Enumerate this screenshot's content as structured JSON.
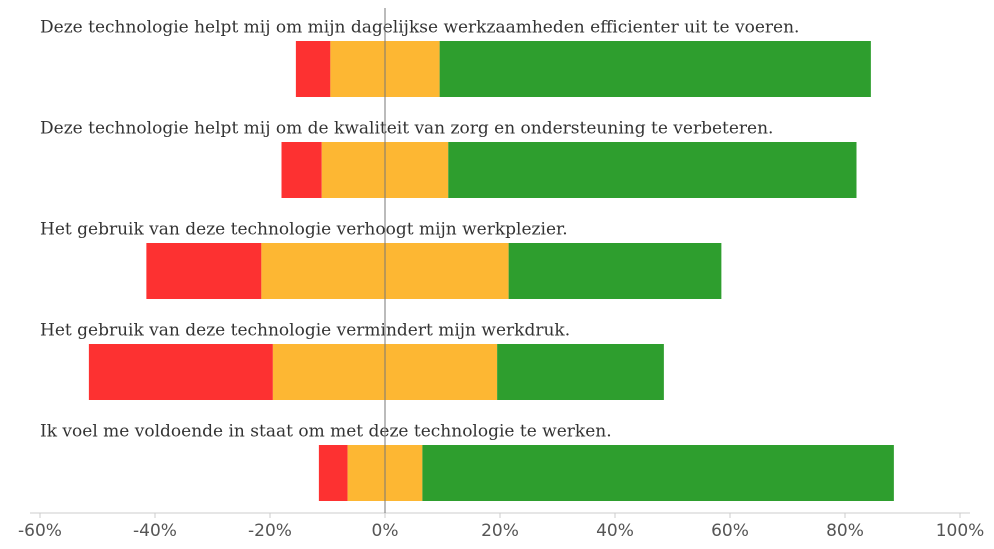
{
  "chart_data": {
    "type": "diverging-bar",
    "categories": [
      "Deze technologie helpt mij om mijn dagelijkse werkzaamheden efficienter uit te voeren.",
      "Deze technologie helpt mij om de kwaliteit van zorg en ondersteuning te verbeteren.",
      "Het gebruik van deze technologie verhoogt mijn werkplezier.",
      "Het gebruik van deze technologie vermindert mijn werkdruk.",
      "Ik voel me voldoende in staat om met deze technologie te werken."
    ],
    "series": [
      {
        "color": "#fd3131",
        "values": [
          6,
          7,
          20,
          32,
          5
        ]
      },
      {
        "color": "#fdb733",
        "values": [
          19,
          22,
          43,
          39,
          13
        ]
      },
      {
        "color": "#2e9e2e",
        "values": [
          75,
          71,
          37,
          29,
          82
        ]
      }
    ],
    "xlim": [
      -60,
      100
    ],
    "xticks": [
      {
        "value": -60,
        "label": "-60%"
      },
      {
        "value": -40,
        "label": "-40%"
      },
      {
        "value": -20,
        "label": "-20%"
      },
      {
        "value": 0,
        "label": "0%"
      },
      {
        "value": 20,
        "label": "20%"
      },
      {
        "value": 40,
        "label": "40%"
      },
      {
        "value": 60,
        "label": "60%"
      },
      {
        "value": 80,
        "label": "80%"
      },
      {
        "value": 100,
        "label": "100%"
      }
    ]
  }
}
